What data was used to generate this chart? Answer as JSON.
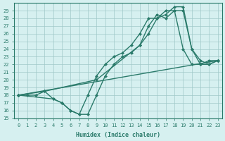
{
  "xlabel": "Humidex (Indice chaleur)",
  "bg_color": "#d6f0f0",
  "grid_color": "#a0c8c8",
  "line_color": "#2a7a6a",
  "xlim": [
    -0.5,
    23.5
  ],
  "ylim": [
    15,
    30
  ],
  "xticks": [
    0,
    1,
    2,
    3,
    4,
    5,
    6,
    7,
    8,
    9,
    10,
    11,
    12,
    13,
    14,
    15,
    16,
    17,
    18,
    19,
    20,
    21,
    22,
    23
  ],
  "yticks": [
    15,
    16,
    17,
    18,
    19,
    20,
    21,
    22,
    23,
    24,
    25,
    26,
    27,
    28,
    29
  ],
  "line1_x": [
    0,
    1,
    2,
    3,
    4,
    5,
    6,
    7,
    8,
    9,
    10,
    11,
    12,
    13,
    14,
    15,
    16,
    17,
    18,
    19,
    20,
    21,
    22,
    23
  ],
  "line1_y": [
    18,
    18,
    18,
    18.5,
    17.5,
    17,
    16,
    15.5,
    15.5,
    18,
    20.5,
    22,
    23,
    23.5,
    24.5,
    26,
    28,
    28.5,
    29.5,
    29.5,
    24,
    22.5,
    22,
    22.5
  ],
  "line2_x": [
    0,
    3,
    9,
    14,
    15,
    16,
    17,
    18,
    19,
    20,
    21,
    22,
    23
  ],
  "line2_y": [
    18,
    18.5,
    20,
    24.5,
    27,
    28.5,
    28,
    29,
    29,
    24,
    22,
    22,
    22.5
  ],
  "line3_x": [
    0,
    23
  ],
  "line3_y": [
    18,
    22.5
  ],
  "line4_x": [
    0,
    4,
    5,
    6,
    7,
    8,
    9,
    10,
    11,
    12,
    13,
    14,
    15,
    16,
    17,
    18,
    19,
    20,
    21,
    22,
    23
  ],
  "line4_y": [
    18,
    17.5,
    17,
    16,
    15.5,
    18,
    20.5,
    22,
    23,
    23.5,
    24.5,
    26,
    28,
    28,
    29,
    29,
    24,
    22,
    22,
    22.5,
    22.5
  ]
}
